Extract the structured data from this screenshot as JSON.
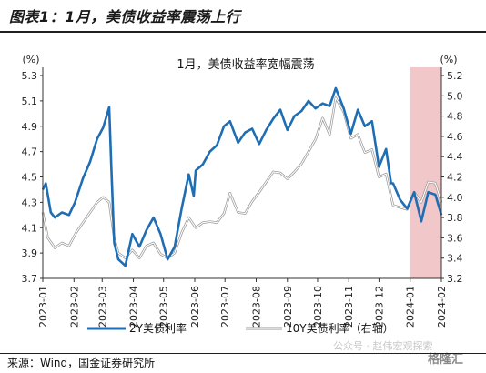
{
  "figure": {
    "title": "图表1：1月，美债收益率震荡上行",
    "source": "来源：Wind，国金证券研究所",
    "watermark": "公众号 · 赵伟宏观探索",
    "watermark_badge": "格隆汇"
  },
  "chart_data": {
    "type": "line",
    "title": "1月，美债收益率宽幅震荡",
    "left_axis_unit": "(%)",
    "right_axis_unit": "(%)",
    "left_ylim": [
      3.7,
      5.3
    ],
    "right_ylim": [
      3.2,
      5.2
    ],
    "left_ticks": [
      "5.3",
      "5.1",
      "4.9",
      "4.7",
      "4.5",
      "4.3",
      "4.1",
      "3.9",
      "3.7"
    ],
    "right_ticks": [
      "5.2",
      "5.0",
      "4.8",
      "4.6",
      "4.4",
      "4.2",
      "4.0",
      "3.8",
      "3.6",
      "3.4",
      "3.2"
    ],
    "x_ticks": [
      "2023-01",
      "2023-02",
      "2023-03",
      "2023-04",
      "2023-05",
      "2023-06",
      "2023-07",
      "2023-08",
      "2023-09",
      "2023-10",
      "2023-11",
      "2023-12",
      "2024-01",
      "2024-02"
    ],
    "highlight": {
      "from": "2024-01",
      "to": "2024-02",
      "color": "#f2c7c9"
    },
    "series": [
      {
        "name": "2Y美债利率",
        "axis": "left",
        "color": "#1f6eb4",
        "x": [
          "2023-01-01",
          "2023-01-04",
          "2023-01-09",
          "2023-01-13",
          "2023-01-20",
          "2023-01-27",
          "2023-02-02",
          "2023-02-10",
          "2023-02-17",
          "2023-02-24",
          "2023-03-02",
          "2023-03-08",
          "2023-03-10",
          "2023-03-13",
          "2023-03-17",
          "2023-03-24",
          "2023-03-31",
          "2023-04-07",
          "2023-04-14",
          "2023-04-21",
          "2023-04-28",
          "2023-05-05",
          "2023-05-12",
          "2023-05-19",
          "2023-05-26",
          "2023-05-31",
          "2023-06-02",
          "2023-06-09",
          "2023-06-16",
          "2023-06-23",
          "2023-06-30",
          "2023-07-06",
          "2023-07-14",
          "2023-07-21",
          "2023-07-28",
          "2023-08-04",
          "2023-08-11",
          "2023-08-18",
          "2023-08-25",
          "2023-09-01",
          "2023-09-08",
          "2023-09-15",
          "2023-09-22",
          "2023-09-29",
          "2023-10-06",
          "2023-10-13",
          "2023-10-19",
          "2023-10-27",
          "2023-11-03",
          "2023-11-10",
          "2023-11-17",
          "2023-11-24",
          "2023-12-01",
          "2023-12-08",
          "2023-12-13",
          "2023-12-15",
          "2023-12-22",
          "2023-12-29",
          "2024-01-05",
          "2024-01-12",
          "2024-01-19",
          "2024-01-26",
          "2024-02-01"
        ],
        "values": [
          4.4,
          4.45,
          4.22,
          4.18,
          4.22,
          4.2,
          4.3,
          4.49,
          4.62,
          4.8,
          4.89,
          5.05,
          4.6,
          3.98,
          3.85,
          3.8,
          4.05,
          3.95,
          4.08,
          4.18,
          4.05,
          3.85,
          3.95,
          4.25,
          4.52,
          4.35,
          4.55,
          4.6,
          4.7,
          4.75,
          4.9,
          4.94,
          4.77,
          4.85,
          4.88,
          4.76,
          4.87,
          4.96,
          5.03,
          4.87,
          4.98,
          5.02,
          5.1,
          5.04,
          5.08,
          5.06,
          5.2,
          5.04,
          4.84,
          5.03,
          4.9,
          4.94,
          4.58,
          4.72,
          4.45,
          4.45,
          4.32,
          4.25,
          4.38,
          4.15,
          4.38,
          4.36,
          4.2
        ]
      },
      {
        "name": "10Y美债利率（右轴）",
        "axis": "right",
        "color": "#b7b7b7",
        "x": [
          "2023-01-01",
          "2023-01-06",
          "2023-01-13",
          "2023-01-20",
          "2023-01-27",
          "2023-02-03",
          "2023-02-10",
          "2023-02-17",
          "2023-02-24",
          "2023-03-02",
          "2023-03-08",
          "2023-03-13",
          "2023-03-17",
          "2023-03-24",
          "2023-03-31",
          "2023-04-07",
          "2023-04-14",
          "2023-04-21",
          "2023-04-28",
          "2023-05-05",
          "2023-05-12",
          "2023-05-19",
          "2023-05-26",
          "2023-06-02",
          "2023-06-09",
          "2023-06-16",
          "2023-06-23",
          "2023-06-30",
          "2023-07-06",
          "2023-07-14",
          "2023-07-21",
          "2023-07-28",
          "2023-08-04",
          "2023-08-11",
          "2023-08-18",
          "2023-08-25",
          "2023-09-01",
          "2023-09-08",
          "2023-09-15",
          "2023-09-22",
          "2023-09-29",
          "2023-10-06",
          "2023-10-13",
          "2023-10-19",
          "2023-10-27",
          "2023-11-03",
          "2023-11-10",
          "2023-11-17",
          "2023-11-24",
          "2023-12-01",
          "2023-12-08",
          "2023-12-15",
          "2023-12-22",
          "2023-12-29",
          "2024-01-05",
          "2024-01-12",
          "2024-01-19",
          "2024-01-26",
          "2024-02-01"
        ],
        "values": [
          3.85,
          3.6,
          3.5,
          3.55,
          3.52,
          3.65,
          3.75,
          3.85,
          3.95,
          4.0,
          3.95,
          3.6,
          3.45,
          3.4,
          3.48,
          3.4,
          3.52,
          3.55,
          3.44,
          3.4,
          3.45,
          3.65,
          3.8,
          3.7,
          3.75,
          3.76,
          3.75,
          3.84,
          4.04,
          3.85,
          3.84,
          3.96,
          4.05,
          4.15,
          4.25,
          4.24,
          4.18,
          4.25,
          4.33,
          4.45,
          4.57,
          4.78,
          4.62,
          4.98,
          4.84,
          4.58,
          4.62,
          4.44,
          4.47,
          4.2,
          4.23,
          3.92,
          3.9,
          3.88,
          4.05,
          3.95,
          4.15,
          4.14,
          3.95
        ]
      }
    ]
  }
}
